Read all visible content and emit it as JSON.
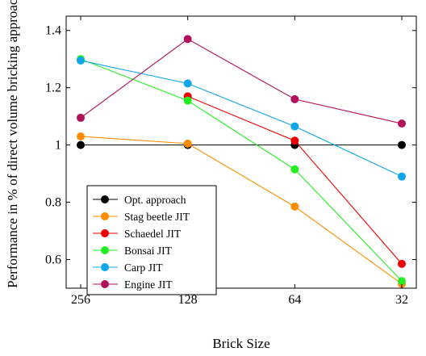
{
  "chart_data": {
    "type": "line",
    "title": "",
    "xlabel": "Brick Size",
    "ylabel": "Performance in % of direct volume bricking approach",
    "categories": [
      "256",
      "128",
      "64",
      "32"
    ],
    "ylim": [
      0.5,
      1.45
    ],
    "yticks": [
      "0.6",
      "0.8",
      "1",
      "1.2",
      "1.4"
    ],
    "ytick_values": [
      0.6,
      0.8,
      1.0,
      1.2,
      1.4
    ],
    "grid": false,
    "legend_position": "lower-left",
    "series": [
      {
        "name": "Opt. approach",
        "color": "#000000",
        "values": [
          1.0,
          1.0,
          1.0,
          1.0
        ]
      },
      {
        "name": "Stag beetle JIT",
        "color": "#ff8c00",
        "values": [
          1.03,
          1.005,
          0.785,
          0.515
        ]
      },
      {
        "name": "Schaedel JIT",
        "color": "#ee0000",
        "values": [
          null,
          1.17,
          1.015,
          0.585
        ]
      },
      {
        "name": "Bonsai JIT",
        "color": "#22ee22",
        "values": [
          1.3,
          1.155,
          0.915,
          0.525
        ]
      },
      {
        "name": "Carp JIT",
        "color": "#0ea5e9",
        "values": [
          1.295,
          1.215,
          1.065,
          0.89
        ]
      },
      {
        "name": "Engine JIT",
        "color": "#b0105a",
        "values": [
          1.095,
          1.37,
          1.16,
          1.075
        ]
      }
    ]
  }
}
